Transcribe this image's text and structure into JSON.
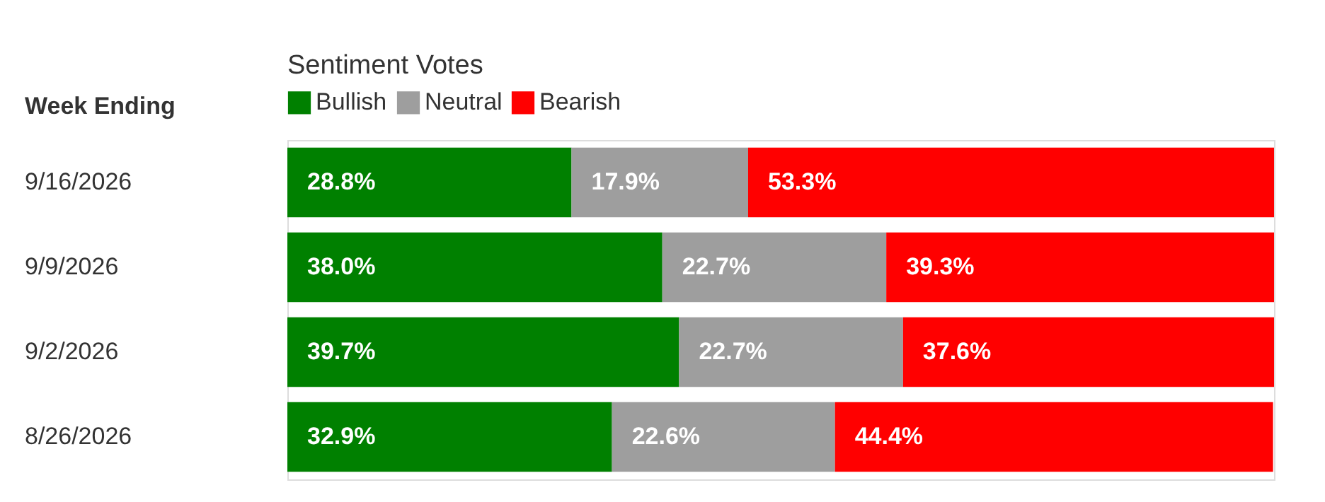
{
  "chart_data": {
    "type": "bar",
    "orientation": "horizontal",
    "stacked": true,
    "ylabel": "Week Ending",
    "legend_title": "Sentiment Votes",
    "legend": "top left",
    "categories": [
      "9/16/2026",
      "9/9/2026",
      "9/2/2026",
      "8/26/2026"
    ],
    "series": [
      {
        "name": "Bullish",
        "color": "#008000",
        "values": [
          28.8,
          38.0,
          39.7,
          32.9
        ],
        "value_labels": [
          "28.8%",
          "38.0%",
          "39.7%",
          "32.9%"
        ]
      },
      {
        "name": "Neutral",
        "color": "#9e9e9e",
        "values": [
          17.9,
          22.7,
          22.7,
          22.6
        ],
        "value_labels": [
          "17.9%",
          "22.7%",
          "22.7%",
          "22.6%"
        ]
      },
      {
        "name": "Bearish",
        "color": "#ff0000",
        "values": [
          53.3,
          39.3,
          37.6,
          44.4
        ],
        "value_labels": [
          "53.3%",
          "39.3%",
          "37.6%",
          "44.4%"
        ]
      }
    ]
  }
}
